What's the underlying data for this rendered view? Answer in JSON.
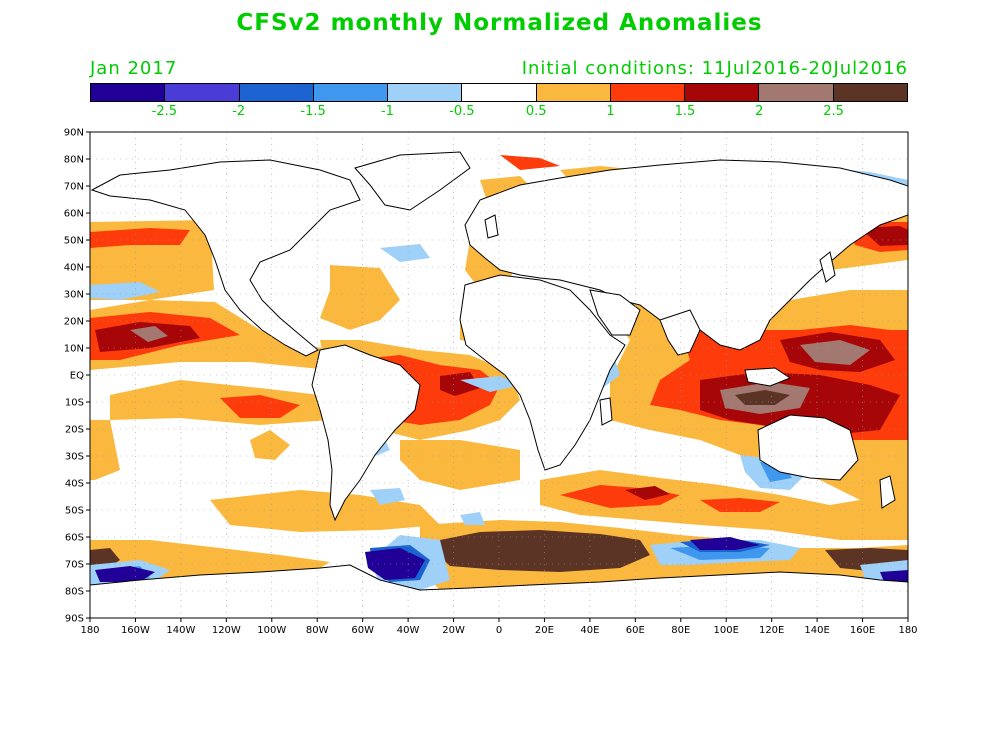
{
  "title": "CFSv2 monthly Normalized Anomalies",
  "valid_month": "Jan 2017",
  "initial_conditions": "Initial conditions: 11Jul2016-20Jul2016",
  "text_color": "#00cc00",
  "colorbar": {
    "colors": [
      "#200096",
      "#4a3cd7",
      "#1a63d0",
      "#3f97ee",
      "#9ed0f8",
      "#ffffff",
      "#fbb83e",
      "#fd3b0b",
      "#a70608",
      "#a27870",
      "#5b3425"
    ],
    "labels": [
      "-2.5",
      "-2",
      "-1.5",
      "-1",
      "-0.5",
      "0.5",
      "1",
      "1.5",
      "2",
      "2.5"
    ]
  },
  "axes": {
    "lat_labels": [
      "90N",
      "80N",
      "70N",
      "60N",
      "50N",
      "40N",
      "30N",
      "20N",
      "10N",
      "EQ",
      "10S",
      "20S",
      "30S",
      "40S",
      "50S",
      "60S",
      "70S",
      "80S",
      "90S"
    ],
    "lon_labels": [
      "180",
      "160W",
      "140W",
      "120W",
      "100W",
      "80W",
      "60W",
      "40W",
      "20W",
      "0",
      "20E",
      "40E",
      "60E",
      "80E",
      "100E",
      "120E",
      "140E",
      "160E",
      "180"
    ]
  }
}
